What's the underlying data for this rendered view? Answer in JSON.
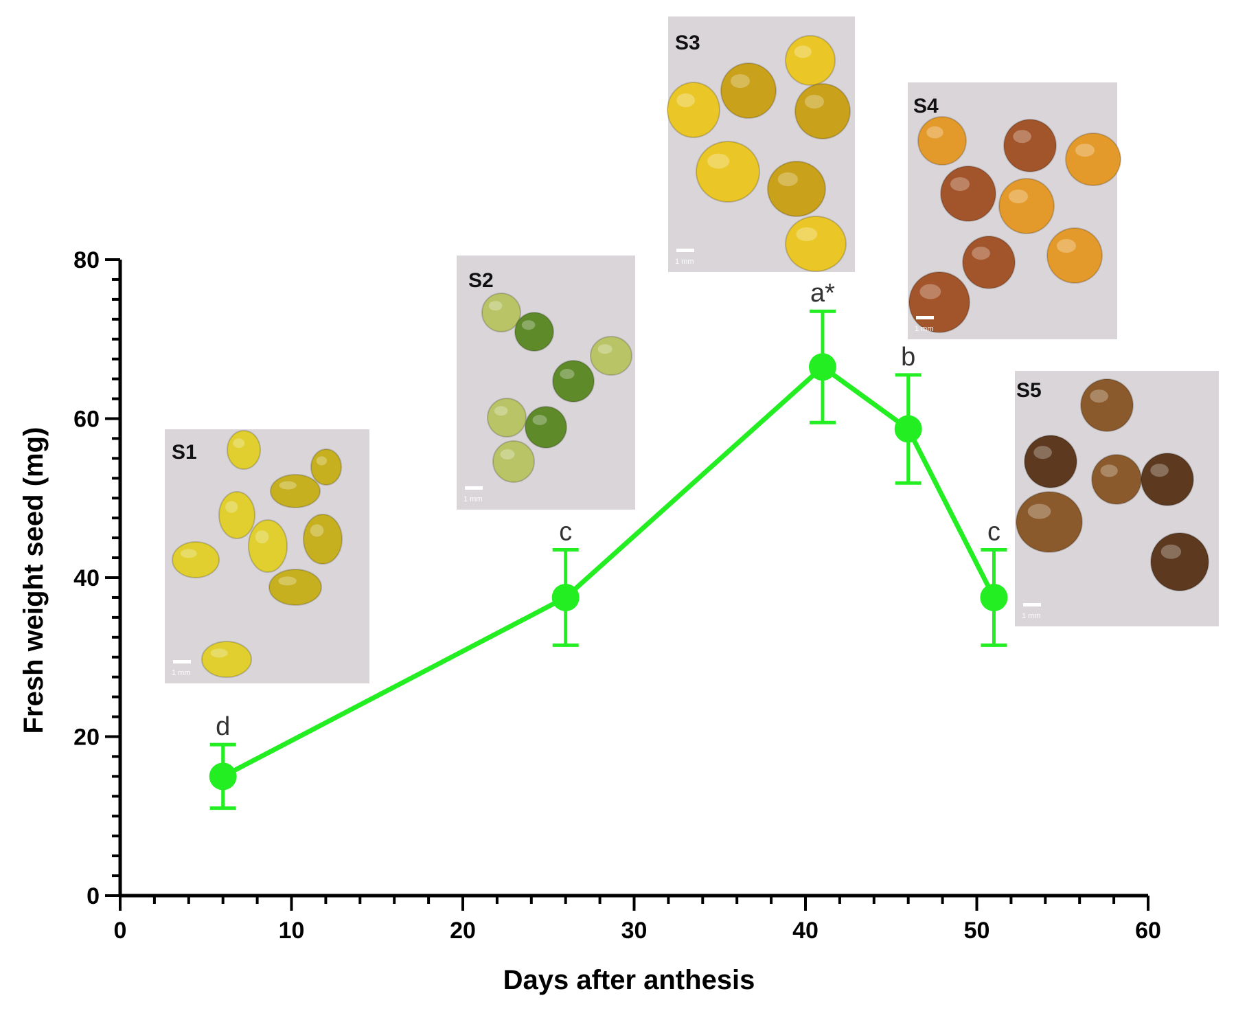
{
  "chart_data": {
    "type": "line",
    "title": "",
    "xlabel": "Days after anthesis",
    "ylabel": "Fresh weight seed (mg)",
    "xlim": [
      0,
      60
    ],
    "ylim": [
      0,
      80
    ],
    "xticks": [
      "0",
      "10",
      "20",
      "30",
      "40",
      "50",
      "60"
    ],
    "yticks": [
      "0",
      "20",
      "40",
      "60",
      "80"
    ],
    "grid": false,
    "series": [
      {
        "name": "Fresh weight seed",
        "color": "#22ee22",
        "points": [
          {
            "x": 6,
            "y": 15,
            "err": 4,
            "label": "d"
          },
          {
            "x": 26,
            "y": 37.5,
            "err": 6,
            "label": "c"
          },
          {
            "x": 41,
            "y": 66.5,
            "err": 7,
            "label": "a*"
          },
          {
            "x": 46,
            "y": 58.7,
            "err": 6.8,
            "label": "b"
          },
          {
            "x": 51,
            "y": 37.5,
            "err": 6,
            "label": "c"
          }
        ]
      }
    ],
    "photos": [
      {
        "stage": "S1",
        "scale": "1 mm",
        "colors": [
          "#e0cf2e",
          "#c6b020"
        ]
      },
      {
        "stage": "S2",
        "scale": "1 mm",
        "colors": [
          "#b8c466",
          "#5e8a2a"
        ]
      },
      {
        "stage": "S3",
        "scale": "1 mm",
        "colors": [
          "#eac726",
          "#c9a11a"
        ]
      },
      {
        "stage": "S4",
        "scale": "1 mm",
        "colors": [
          "#e39a2a",
          "#a2542a"
        ]
      },
      {
        "stage": "S5",
        "scale": "1 mm",
        "colors": [
          "#8a5a2c",
          "#5c391f"
        ]
      }
    ]
  }
}
